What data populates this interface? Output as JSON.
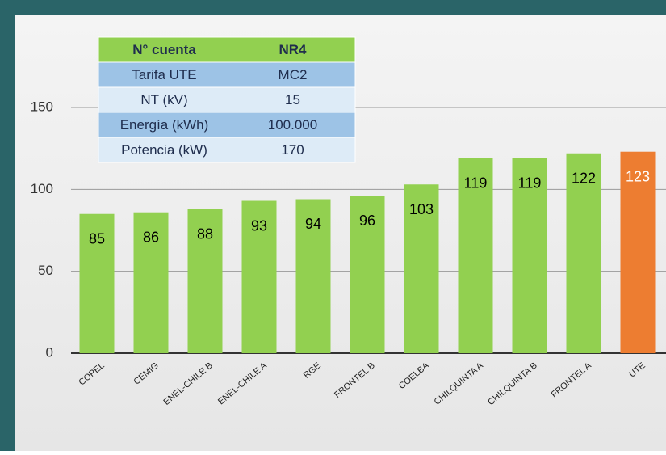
{
  "chart_data": {
    "type": "bar",
    "categories": [
      "COPEL",
      "CEMIG",
      "ENEL-CHILE B",
      "ENEL-CHILE A",
      "RGE",
      "FRONTEL B",
      "COELBA",
      "CHILQUINTA A",
      "CHILQUINTA B",
      "FRONTEL A",
      "UTE"
    ],
    "values": [
      85,
      86,
      88,
      93,
      94,
      96,
      103,
      119,
      119,
      122,
      123
    ],
    "colors": [
      "#92d050",
      "#92d050",
      "#92d050",
      "#92d050",
      "#92d050",
      "#92d050",
      "#92d050",
      "#92d050",
      "#92d050",
      "#92d050",
      "#ed7d31"
    ],
    "ylim": [
      0,
      150
    ],
    "yticks": [
      0,
      50,
      100,
      150
    ],
    "grid": true
  },
  "table": {
    "header": [
      "N° cuenta",
      "NR4"
    ],
    "rows": [
      [
        "Tarifa UTE",
        "MC2"
      ],
      [
        "NT (kV)",
        "15"
      ],
      [
        "Energía (kWh)",
        "100.000"
      ],
      [
        "Potencia (kW)",
        "170"
      ]
    ]
  }
}
